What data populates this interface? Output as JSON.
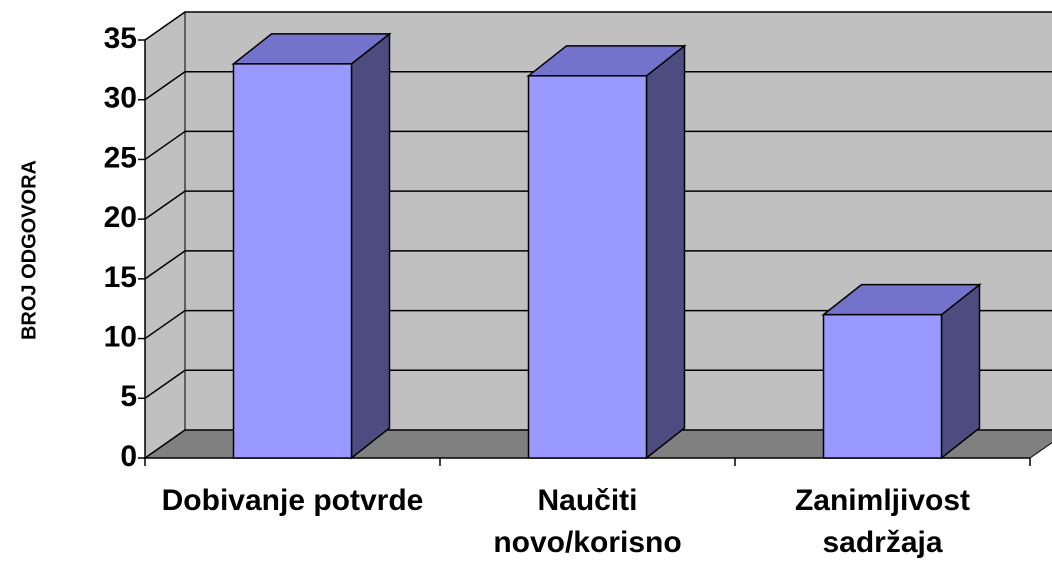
{
  "chart_data": {
    "type": "bar3d",
    "y_label": "BROJ ODGOVORA",
    "categories": [
      "Dobivanje potvrde",
      "Naučiti novo/korisno",
      "Zanimljivost sadržaja"
    ],
    "values": [
      33,
      32,
      12
    ],
    "color": "#9999ff",
    "ylim": [
      0,
      35
    ],
    "yticks": [
      0,
      5,
      10,
      15,
      20,
      25,
      30,
      35
    ],
    "grid": true
  }
}
